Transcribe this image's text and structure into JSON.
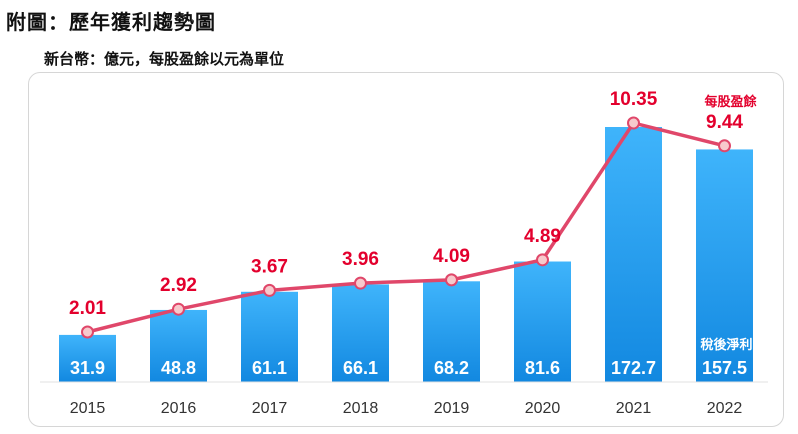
{
  "header": {
    "title": "附圖：歷年獲利趨勢圖",
    "subtitle": "新台幣：億元，每股盈餘以元為單位"
  },
  "chart_data": {
    "type": "bar",
    "categories": [
      "2015",
      "2016",
      "2017",
      "2018",
      "2019",
      "2020",
      "2021",
      "2022"
    ],
    "series": [
      {
        "name": "稅後淨利",
        "type": "bar",
        "values": [
          31.9,
          48.8,
          61.1,
          66.1,
          68.2,
          81.6,
          172.7,
          157.5
        ]
      },
      {
        "name": "每股盈餘",
        "type": "line",
        "values": [
          2.01,
          2.92,
          3.67,
          3.96,
          4.09,
          4.89,
          10.35,
          9.44
        ]
      }
    ],
    "grid": false,
    "colors": {
      "bar_top": "#3fb4fb",
      "bar_bottom": "#1288e0",
      "line": "#e0476a",
      "marker_fill": "#f7c9cc",
      "eps_label": "#e3002d",
      "bar_label": "#ffffff",
      "axis_label": "#333333"
    }
  }
}
